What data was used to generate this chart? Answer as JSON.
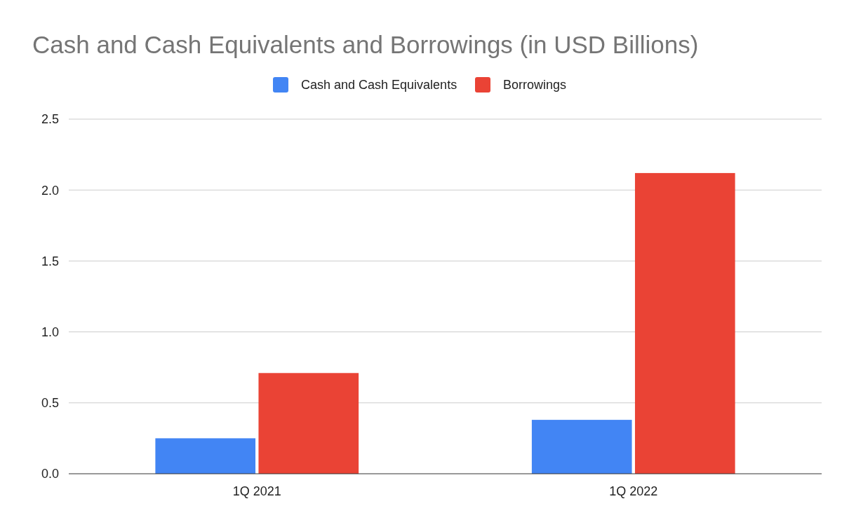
{
  "chart_data": {
    "type": "bar",
    "title": "Cash and Cash Equivalents and Borrowings (in USD Billions)",
    "categories": [
      "1Q 2021",
      "1Q 2022"
    ],
    "series": [
      {
        "name": "Cash and Cash Equivalents",
        "color": "#4285f4",
        "values": [
          0.25,
          0.38
        ]
      },
      {
        "name": "Borrowings",
        "color": "#ea4335",
        "values": [
          0.71,
          2.12
        ]
      }
    ],
    "ylim": [
      0,
      2.5
    ],
    "yticks": [
      {
        "value": 0,
        "label": "0.0"
      },
      {
        "value": 0.5,
        "label": "0.5"
      },
      {
        "value": 1,
        "label": "1.0"
      },
      {
        "value": 1.5,
        "label": "1.5"
      },
      {
        "value": 2,
        "label": "2.0"
      },
      {
        "value": 2.5,
        "label": "2.5"
      }
    ],
    "grid": "y",
    "legend": "top"
  }
}
